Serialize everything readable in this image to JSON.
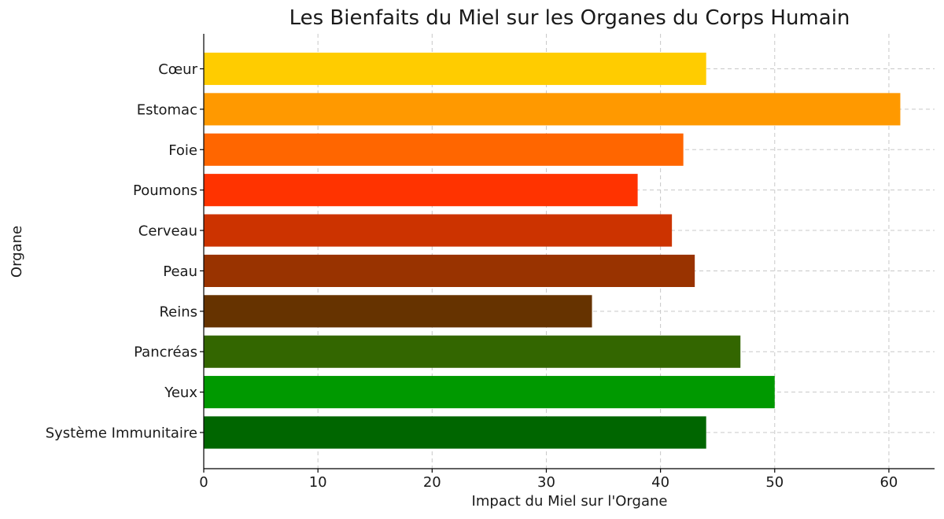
{
  "chart_data": {
    "type": "bar",
    "orientation": "horizontal",
    "title": "Les Bienfaits du Miel sur les Organes du Corps Humain",
    "xlabel": "Impact du Miel sur l'Organe",
    "ylabel": "Organe",
    "categories": [
      "Cœur",
      "Estomac",
      "Foie",
      "Poumons",
      "Cerveau",
      "Peau",
      "Reins",
      "Pancréas",
      "Yeux",
      "Système Immunitaire"
    ],
    "values": [
      44,
      61,
      42,
      38,
      41,
      43,
      34,
      47,
      50,
      44
    ],
    "colors": [
      "#FFCC00",
      "#FF9900",
      "#FF6600",
      "#FF3300",
      "#CC3300",
      "#993300",
      "#663300",
      "#336600",
      "#009900",
      "#006600"
    ],
    "xlim": [
      0,
      64
    ],
    "xticks": [
      0,
      10,
      20,
      30,
      40,
      50,
      60
    ],
    "grid": true
  }
}
